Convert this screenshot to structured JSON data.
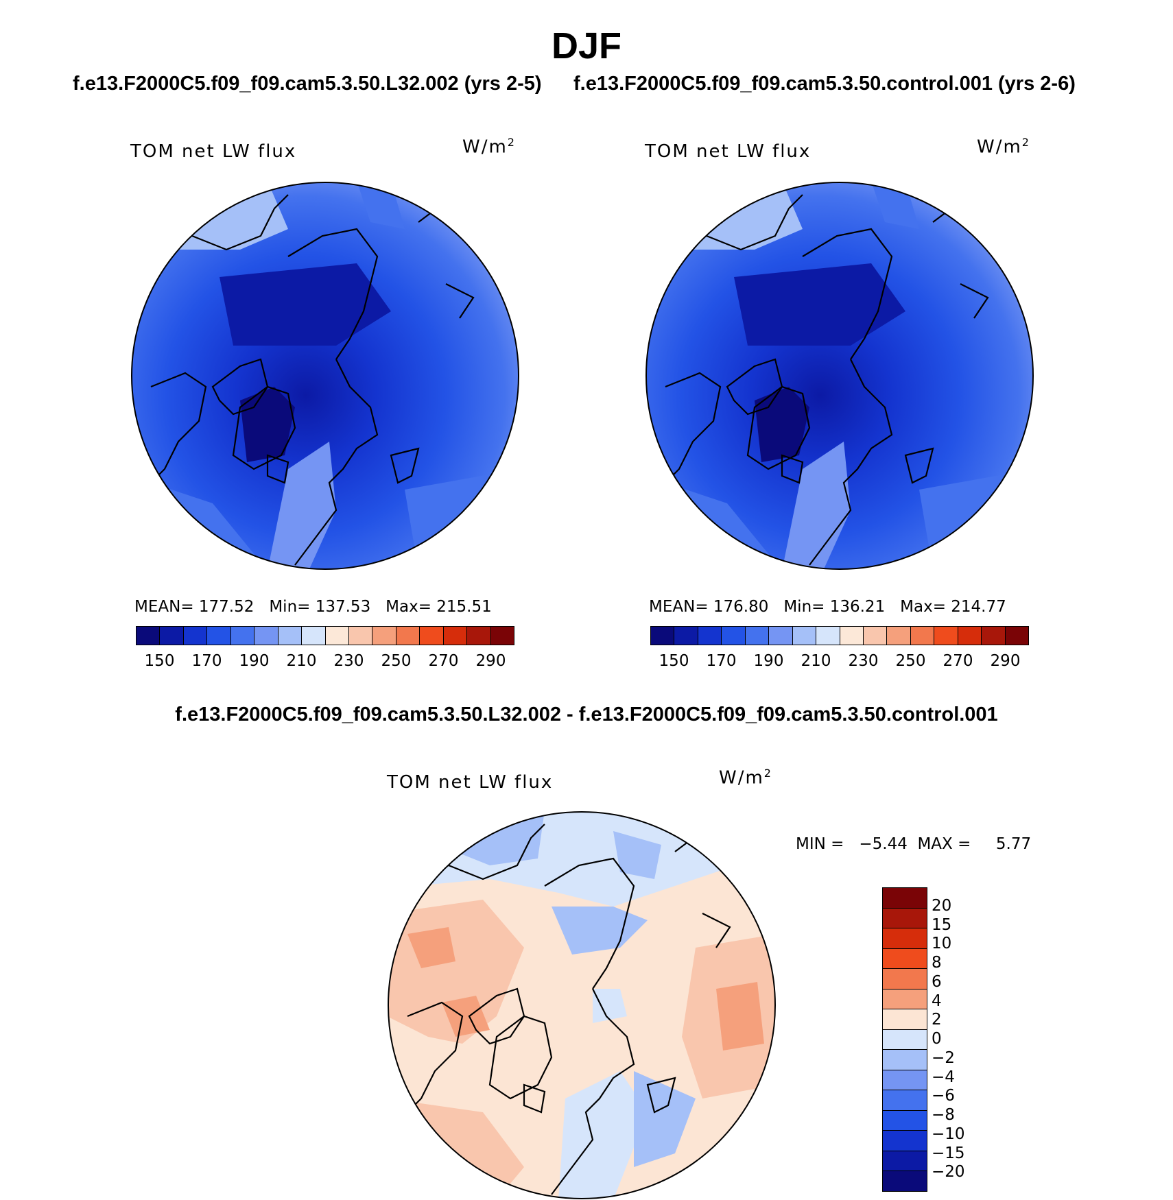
{
  "figure": {
    "title": "DJF",
    "case_a_title": "f.e13.F2000C5.f09_f09.cam5.3.50.L32.002 (yrs 2-5)",
    "case_b_title": "f.e13.F2000C5.f09_f09.cam5.3.50.control.001 (yrs 2-6)",
    "diff_title": "f.e13.F2000C5.f09_f09.cam5.3.50.L32.002 - f.e13.F2000C5.f09_f09.cam5.3.50.control.001"
  },
  "panels": {
    "a": {
      "variable": "TOM net LW flux",
      "units": "W/m",
      "units_sup": "2",
      "mean_text": "MEAN= 177.52",
      "min_text": "Min= 137.53",
      "max_text": "Max= 215.51"
    },
    "b": {
      "variable": "TOM net LW flux",
      "units": "W/m",
      "units_sup": "2",
      "mean_text": "MEAN= 176.80",
      "min_text": "Min= 136.21",
      "max_text": "Max= 214.77"
    },
    "diff": {
      "variable": "TOM net LW flux",
      "units": "W/m",
      "units_sup": "2",
      "minmax_text": "MIN =   −5.44  MAX =     5.77"
    }
  },
  "colorbars": {
    "abs": {
      "colors": [
        "#0a0a7a",
        "#0c1aa5",
        "#1434cf",
        "#2353e6",
        "#4472ee",
        "#7595f3",
        "#a5c0f8",
        "#d6e5fb",
        "#fce8d8",
        "#f9c6ad",
        "#f5a07c",
        "#f2784d",
        "#ef4c1d",
        "#d62d0b",
        "#a8170a",
        "#7a0406"
      ],
      "labels": [
        "150",
        "170",
        "190",
        "210",
        "230",
        "250",
        "270",
        "290"
      ]
    },
    "diff": {
      "colors_top_to_bottom": [
        "#7a0406",
        "#a8170a",
        "#d62d0b",
        "#ef4c1d",
        "#f2784d",
        "#f5a07c",
        "#fce5d4",
        "#d6e5fb",
        "#a5c0f8",
        "#7595f3",
        "#4472ee",
        "#2353e6",
        "#1434cf",
        "#0c1aa5",
        "#0a0a7a"
      ],
      "labels": [
        "20",
        "15",
        "10",
        "8",
        "6",
        "4",
        "2",
        "0",
        "−2",
        "−4",
        "−6",
        "−8",
        "−10",
        "−15",
        "−20"
      ]
    }
  }
}
